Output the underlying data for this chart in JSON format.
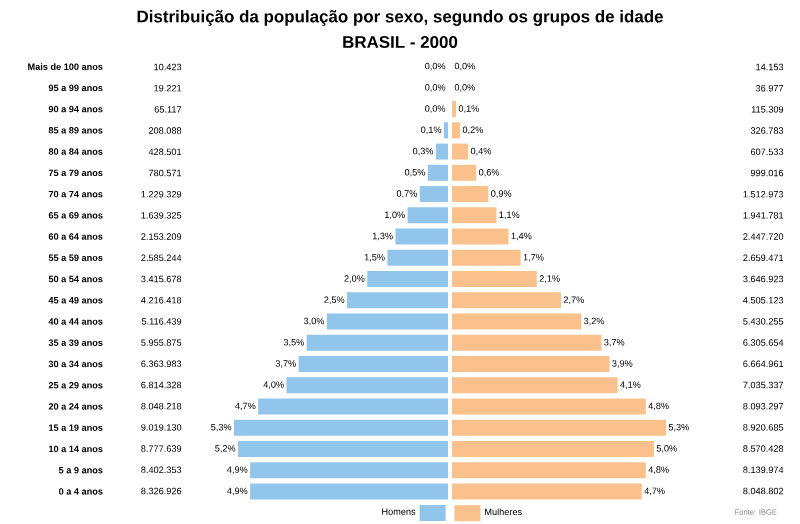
{
  "chart_data": [
    {
      "type": "bar",
      "orientation": "horizontal",
      "title": "Distribuição da população por sexo, segundo os grupos de idade",
      "subtitle": "BRASIL - 2000",
      "categories": [
        "Mais de 100 anos",
        "95 a 99 anos",
        "90 a 94 anos",
        "85 a 89 anos",
        "80 a 84 anos",
        "75 a 79 anos",
        "70 a 74 anos",
        "65 a 69 anos",
        "60 a 64 anos",
        "55 a 59 anos",
        "50 a 54 anos",
        "45 a 49 anos",
        "40 a 44 anos",
        "35 a 39 anos",
        "30 a 34 anos",
        "25 a 29 anos",
        "20 a 24 anos",
        "15 a 19 anos",
        "10 a 14 anos",
        "5 a 9 anos",
        "0 a 4 anos"
      ],
      "series": [
        {
          "name": "Homens",
          "color": "#92c5eb",
          "values": [
            0.0,
            0.0,
            0.0,
            0.1,
            0.3,
            0.5,
            0.7,
            1.0,
            1.3,
            1.5,
            2.0,
            2.5,
            3.0,
            3.5,
            3.7,
            4.0,
            4.7,
            5.3,
            5.2,
            4.9,
            4.9
          ],
          "value_labels": [
            "0,0%",
            "0,0%",
            "0,0%",
            "0,1%",
            "0,3%",
            "0,5%",
            "0,7%",
            "1,0%",
            "1,3%",
            "1,5%",
            "2,0%",
            "2,5%",
            "3,0%",
            "3,5%",
            "3,7%",
            "4,0%",
            "4,7%",
            "5,3%",
            "5,2%",
            "4,9%",
            "4,9%"
          ]
        }
      ],
      "tick_labels": "y",
      "legend": "bottom right",
      "annotations": [
        "10.423",
        "19.221",
        "65.117",
        "208.088",
        "428.501",
        "780.571",
        "1.229.329",
        "1.639.325",
        "2.153.209",
        "2.585.244",
        "3.415.678",
        "4.216.418",
        "5.116.439",
        "5.955.875",
        "6.363.983",
        "6.814.328",
        "8.048.218",
        "9.019.130",
        "8.777.639",
        "8.402.353",
        "8.326.926"
      ]
    },
    {
      "type": "bar",
      "orientation": "horizontal",
      "categories": [
        null,
        null,
        null,
        null,
        null,
        null,
        null,
        null,
        null,
        null,
        null,
        null,
        null,
        null,
        null,
        null,
        null,
        null,
        null,
        null,
        null
      ],
      "series": [
        {
          "name": "Mulheres",
          "color": "#fbc18c",
          "values": [
            0.0,
            0.0,
            0.1,
            0.2,
            0.4,
            0.6,
            0.9,
            1.1,
            1.4,
            1.7,
            2.1,
            2.7,
            3.2,
            3.7,
            3.9,
            4.1,
            4.8,
            5.3,
            5.0,
            4.8,
            4.7
          ],
          "value_labels": [
            "0,0%",
            "0,0%",
            "0,1%",
            "0,2%",
            "0,4%",
            "0,6%",
            "0,9%",
            "1,1%",
            "1,4%",
            "1,7%",
            "2,1%",
            "2,7%",
            "3,2%",
            "3,7%",
            "3,9%",
            "4,1%",
            "4,8%",
            "5,3%",
            "5,0%",
            "4,8%",
            "4,7%"
          ]
        }
      ],
      "tick_labels": false,
      "legend": "bottom left",
      "annotations": [
        "14.153",
        "36.977",
        "115.309",
        "326.783",
        "607.533",
        "999.016",
        "1.512.973",
        "1.941.781",
        "2.447.720",
        "2.659.471",
        "3.646.923",
        "4.505.123",
        "5.430.255",
        "6.305.654",
        "6.664.961",
        "7.035.337",
        "8.093.297",
        "8.920.685",
        "8.570.428",
        "8.139.974",
        "8.048.802",
        "Fonte: IBGE"
      ]
    }
  ]
}
